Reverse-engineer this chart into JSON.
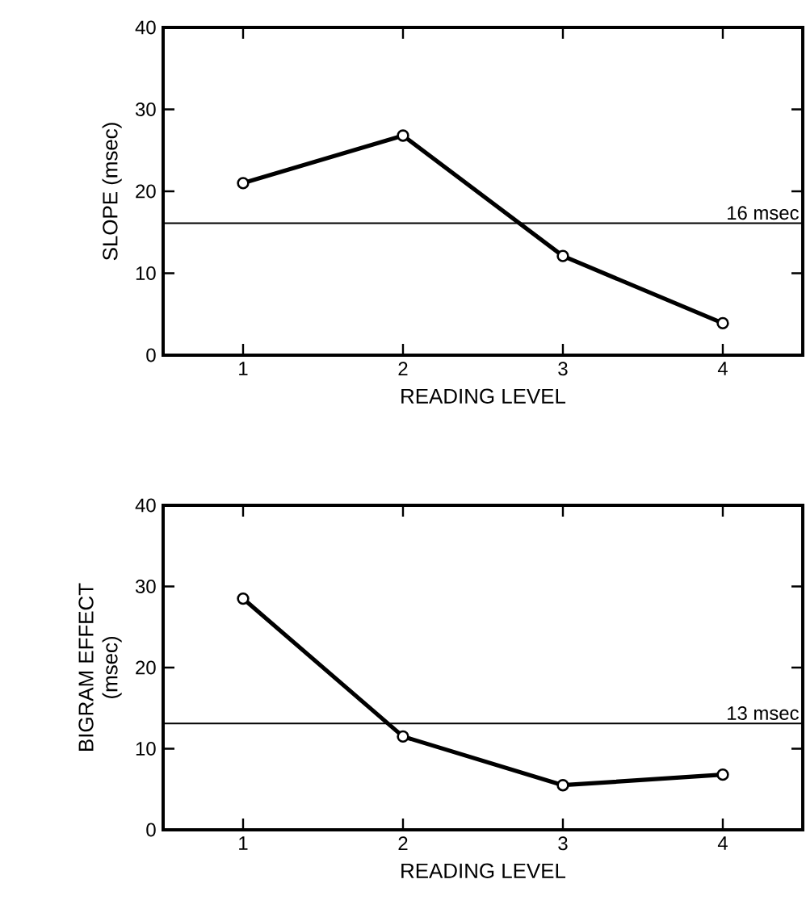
{
  "chart_data": [
    {
      "type": "line",
      "ylabel": "SLOPE (msec)",
      "xlabel": "READING LEVEL",
      "x": [
        1,
        2,
        3,
        4
      ],
      "xlim": [
        0.5,
        4.5
      ],
      "ylim": [
        0,
        40
      ],
      "xticks": [
        1,
        2,
        3,
        4
      ],
      "yticks": [
        0,
        10,
        20,
        30,
        40
      ],
      "marker": "circle",
      "line_style": "solid",
      "grid": false,
      "series": [
        {
          "color": "#000000",
          "values": [
            21,
            26.8,
            12.1,
            3.9
          ]
        }
      ],
      "ref_lines": [
        {
          "axis": "y",
          "value": 16.1,
          "label": "16 msec",
          "color": "#000000"
        }
      ]
    },
    {
      "type": "line",
      "ylabel": "BIGRAM EFFECT\n(msec)",
      "xlabel": "READING LEVEL",
      "x": [
        1,
        2,
        3,
        4
      ],
      "xlim": [
        0.5,
        4.5
      ],
      "ylim": [
        0,
        40
      ],
      "xticks": [
        1,
        2,
        3,
        4
      ],
      "yticks": [
        0,
        10,
        20,
        30,
        40
      ],
      "marker": "circle",
      "line_style": "solid",
      "grid": false,
      "series": [
        {
          "color": "#000000",
          "values": [
            28.5,
            11.5,
            5.5,
            6.8
          ]
        }
      ],
      "ref_lines": [
        {
          "axis": "y",
          "value": 13.1,
          "label": "13 msec",
          "color": "#000000"
        }
      ]
    }
  ]
}
